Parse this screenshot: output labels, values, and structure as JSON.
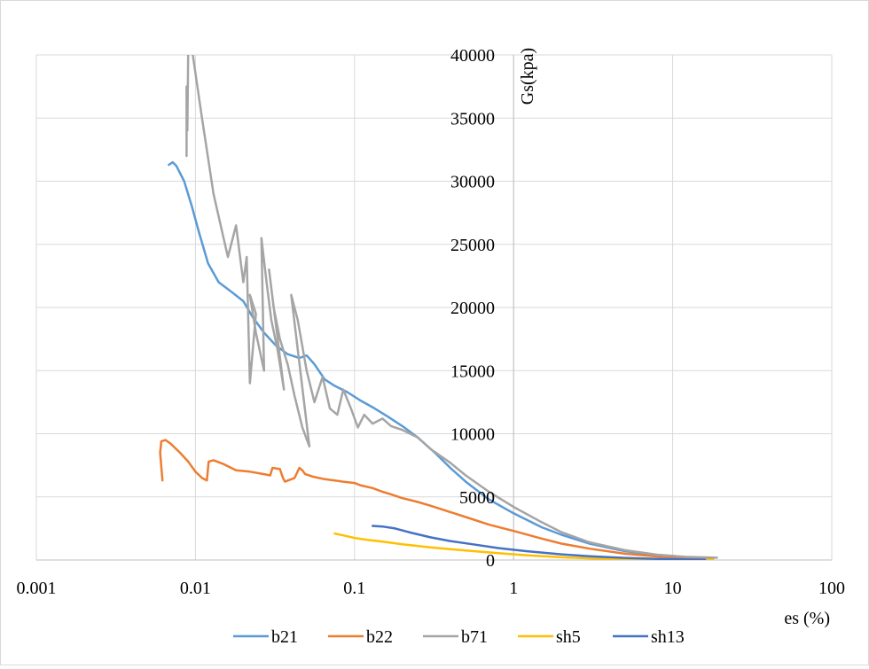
{
  "chart_data": {
    "type": "line",
    "xlabel": "es (%)",
    "ylabel": "Gs(kpa)",
    "x_scale": "log",
    "xlim": [
      0.001,
      100
    ],
    "ylim": [
      0,
      40000
    ],
    "x_ticks": [
      "0.001",
      "0.01",
      "0.1",
      "1",
      "10",
      "100"
    ],
    "y_ticks": [
      "0",
      "5000",
      "10000",
      "15000",
      "20000",
      "25000",
      "30000",
      "35000",
      "40000"
    ],
    "grid": true,
    "legend": "bottom",
    "series": [
      {
        "name": "b21",
        "color": "#5b9bd5",
        "x": [
          0.0068,
          0.0072,
          0.0076,
          0.0085,
          0.0095,
          0.0105,
          0.012,
          0.014,
          0.017,
          0.02,
          0.023,
          0.027,
          0.032,
          0.038,
          0.045,
          0.05,
          0.056,
          0.065,
          0.075,
          0.09,
          0.11,
          0.13,
          0.16,
          0.2,
          0.25,
          0.32,
          0.4,
          0.5,
          0.7,
          1.0,
          1.5,
          2,
          3,
          5,
          8,
          12,
          18
        ],
        "y": [
          31300,
          31500,
          31200,
          30000,
          28000,
          26000,
          23500,
          22000,
          21200,
          20500,
          19200,
          18000,
          17000,
          16300,
          16000,
          16200,
          15500,
          14300,
          13800,
          13300,
          12600,
          12100,
          11400,
          10600,
          9700,
          8500,
          7300,
          6200,
          4800,
          3700,
          2600,
          2000,
          1300,
          700,
          380,
          220,
          150
        ]
      },
      {
        "name": "b22",
        "color": "#ed7d31",
        "x": [
          0.0062,
          0.006,
          0.0061,
          0.0065,
          0.007,
          0.008,
          0.009,
          0.01,
          0.011,
          0.0118,
          0.0121,
          0.013,
          0.015,
          0.018,
          0.022,
          0.027,
          0.0295,
          0.0305,
          0.034,
          0.0355,
          0.0365,
          0.042,
          0.045,
          0.047,
          0.049,
          0.055,
          0.065,
          0.075,
          0.085,
          0.1,
          0.11,
          0.13,
          0.15,
          0.17,
          0.2,
          0.25,
          0.3,
          0.4,
          0.5,
          0.7,
          1.0,
          1.5,
          2,
          3,
          5,
          8,
          12,
          16
        ],
        "y": [
          6300,
          8500,
          9400,
          9500,
          9200,
          8500,
          7800,
          7000,
          6500,
          6300,
          7800,
          7900,
          7600,
          7100,
          7000,
          6800,
          6700,
          7300,
          7200,
          6500,
          6200,
          6500,
          7300,
          7100,
          6800,
          6600,
          6400,
          6300,
          6200,
          6100,
          5900,
          5700,
          5400,
          5200,
          4900,
          4600,
          4300,
          3800,
          3400,
          2800,
          2300,
          1700,
          1300,
          900,
          500,
          280,
          160,
          100
        ]
      },
      {
        "name": "b71",
        "color": "#a5a5a5",
        "x": [
          0.0088,
          0.0088,
          0.0089,
          0.009,
          0.0095,
          0.011,
          0.013,
          0.016,
          0.018,
          0.02,
          0.021,
          0.022,
          0.024,
          0.022,
          0.024,
          0.027,
          0.026,
          0.028,
          0.03,
          0.033,
          0.036,
          0.029,
          0.031,
          0.034,
          0.038,
          0.042,
          0.047,
          0.052,
          0.04,
          0.044,
          0.05,
          0.056,
          0.063,
          0.07,
          0.078,
          0.085,
          0.095,
          0.105,
          0.115,
          0.13,
          0.15,
          0.17,
          0.2,
          0.25,
          0.3,
          0.4,
          0.5,
          0.7,
          1.0,
          1.5,
          2,
          3,
          5,
          8,
          12,
          19
        ],
        "y": [
          32000,
          37500,
          34000,
          40000,
          40500,
          35000,
          29000,
          24000,
          26500,
          22000,
          24000,
          14000,
          19500,
          21000,
          18000,
          15000,
          25500,
          22000,
          19000,
          16500,
          13500,
          23000,
          20000,
          17500,
          15500,
          13000,
          10500,
          9000,
          21000,
          19000,
          15000,
          12500,
          14500,
          12000,
          11500,
          13500,
          12000,
          10500,
          11500,
          10800,
          11200,
          10600,
          10300,
          9700,
          8800,
          7700,
          6700,
          5400,
          4200,
          3000,
          2200,
          1400,
          780,
          420,
          250,
          180
        ]
      },
      {
        "name": "sh5",
        "color": "#ffc000",
        "x": [
          0.075,
          0.085,
          0.1,
          0.12,
          0.15,
          0.2,
          0.3,
          0.5,
          0.8,
          1.2,
          2,
          3,
          5,
          8,
          12,
          18
        ],
        "y": [
          2100,
          1950,
          1750,
          1600,
          1450,
          1250,
          1000,
          750,
          550,
          380,
          220,
          130,
          60,
          30,
          15,
          10
        ]
      },
      {
        "name": "sh13",
        "color": "#4472c4",
        "x": [
          0.13,
          0.15,
          0.18,
          0.22,
          0.3,
          0.4,
          0.55,
          0.8,
          1.2,
          2,
          3,
          5,
          8,
          12,
          16
        ],
        "y": [
          2700,
          2650,
          2500,
          2200,
          1800,
          1500,
          1250,
          950,
          700,
          450,
          300,
          170,
          90,
          40,
          20
        ]
      }
    ]
  }
}
